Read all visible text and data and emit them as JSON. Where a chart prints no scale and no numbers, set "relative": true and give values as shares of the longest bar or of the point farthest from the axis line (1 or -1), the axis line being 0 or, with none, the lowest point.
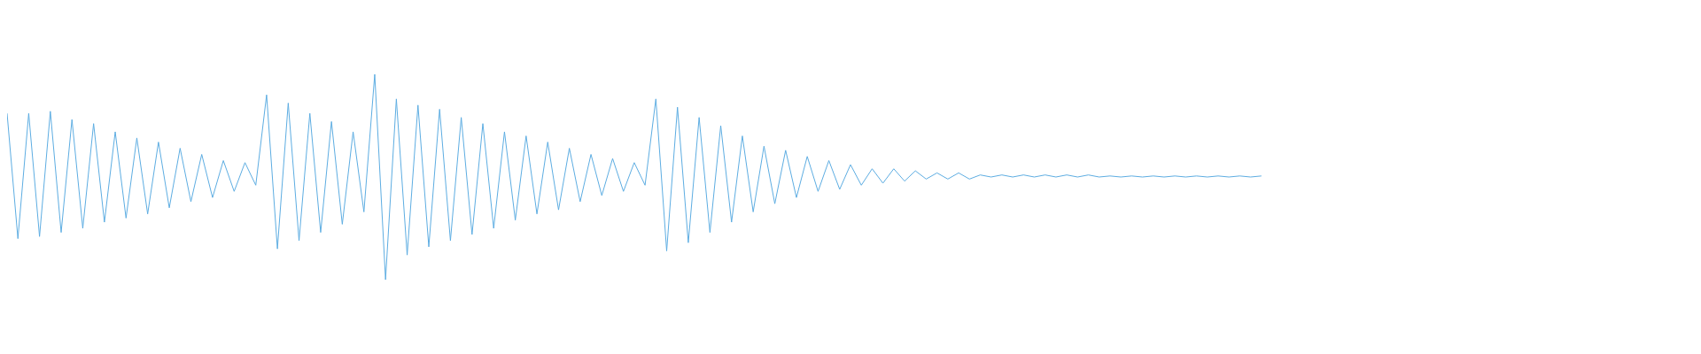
{
  "chart_data": {
    "type": "line",
    "relative": true,
    "color": "#5dade2",
    "categories": [
      null,
      null,
      null,
      null,
      null,
      null,
      null,
      null,
      null,
      null,
      null,
      null,
      null,
      null,
      null,
      null,
      null,
      null,
      null,
      null,
      null,
      null,
      null,
      null,
      null,
      null,
      null,
      null,
      null,
      null,
      null,
      null,
      null,
      null,
      null,
      null,
      null,
      null,
      null,
      null,
      null,
      null,
      null,
      null,
      null,
      null,
      null,
      null,
      null,
      null,
      null,
      null,
      null,
      null,
      null,
      null,
      null,
      null,
      null,
      null,
      null,
      null,
      null,
      null,
      null,
      null,
      null,
      null,
      null,
      null,
      null,
      null,
      null,
      null,
      null,
      null,
      null,
      null,
      null,
      null,
      null,
      null,
      null,
      null,
      null,
      null,
      null,
      null,
      null,
      null,
      null,
      null,
      null,
      null,
      null,
      null,
      null,
      null,
      null,
      null,
      null,
      null,
      null,
      null,
      null,
      null,
      null,
      null,
      null,
      null,
      null,
      null,
      null,
      null,
      null,
      null,
      null,
      null,
      null,
      null,
      null,
      null,
      null,
      null,
      null,
      null,
      null,
      null,
      null,
      null,
      null,
      null,
      null,
      null,
      null,
      null,
      null,
      null,
      null,
      null,
      null,
      null,
      null,
      null,
      null,
      null,
      null,
      null,
      null,
      null,
      null,
      null,
      null,
      null,
      null,
      null,
      null
    ],
    "values": [
      0.81,
      0.2,
      0.81,
      0.21,
      0.82,
      0.23,
      0.78,
      0.25,
      0.76,
      0.28,
      0.72,
      0.3,
      0.69,
      0.32,
      0.67,
      0.35,
      0.64,
      0.38,
      0.61,
      0.4,
      0.58,
      0.43,
      0.57,
      0.46,
      0.9,
      0.15,
      0.86,
      0.19,
      0.81,
      0.23,
      0.77,
      0.27,
      0.72,
      0.33,
      1.0,
      0,
      0.88,
      0.12,
      0.85,
      0.16,
      0.83,
      0.19,
      0.79,
      0.22,
      0.76,
      0.25,
      0.72,
      0.29,
      0.7,
      0.32,
      0.67,
      0.34,
      0.64,
      0.38,
      0.61,
      0.41,
      0.59,
      0.43,
      0.57,
      0.46,
      0.88,
      0.14,
      0.84,
      0.18,
      0.79,
      0.23,
      0.75,
      0.28,
      0.7,
      0.33,
      0.65,
      0.37,
      0.63,
      0.4,
      0.6,
      0.43,
      0.58,
      0.44,
      0.56,
      0.46,
      0.54,
      0.47,
      0.54,
      0.48,
      0.53,
      0.49,
      0.52,
      0.49,
      0.52,
      0.49,
      0.51,
      0.5,
      0.51,
      0.5,
      0.51,
      0.5,
      0.51,
      0.5,
      0.51,
      0.5,
      0.51,
      0.5,
      0.505,
      0.5,
      0.505,
      0.5,
      0.505,
      0.5,
      0.505,
      0.5,
      0.505,
      0.5,
      0.505,
      0.5,
      0.505,
      0.5,
      0.505,
      null,
      null,
      null,
      null,
      null,
      null,
      null,
      null,
      null,
      null,
      null,
      null,
      null,
      null,
      null,
      null,
      null,
      null,
      null,
      null,
      null,
      null,
      null,
      null,
      null,
      null,
      null,
      null,
      null,
      null,
      null,
      null,
      null,
      null,
      null,
      null,
      null,
      null,
      null,
      null
    ]
  }
}
